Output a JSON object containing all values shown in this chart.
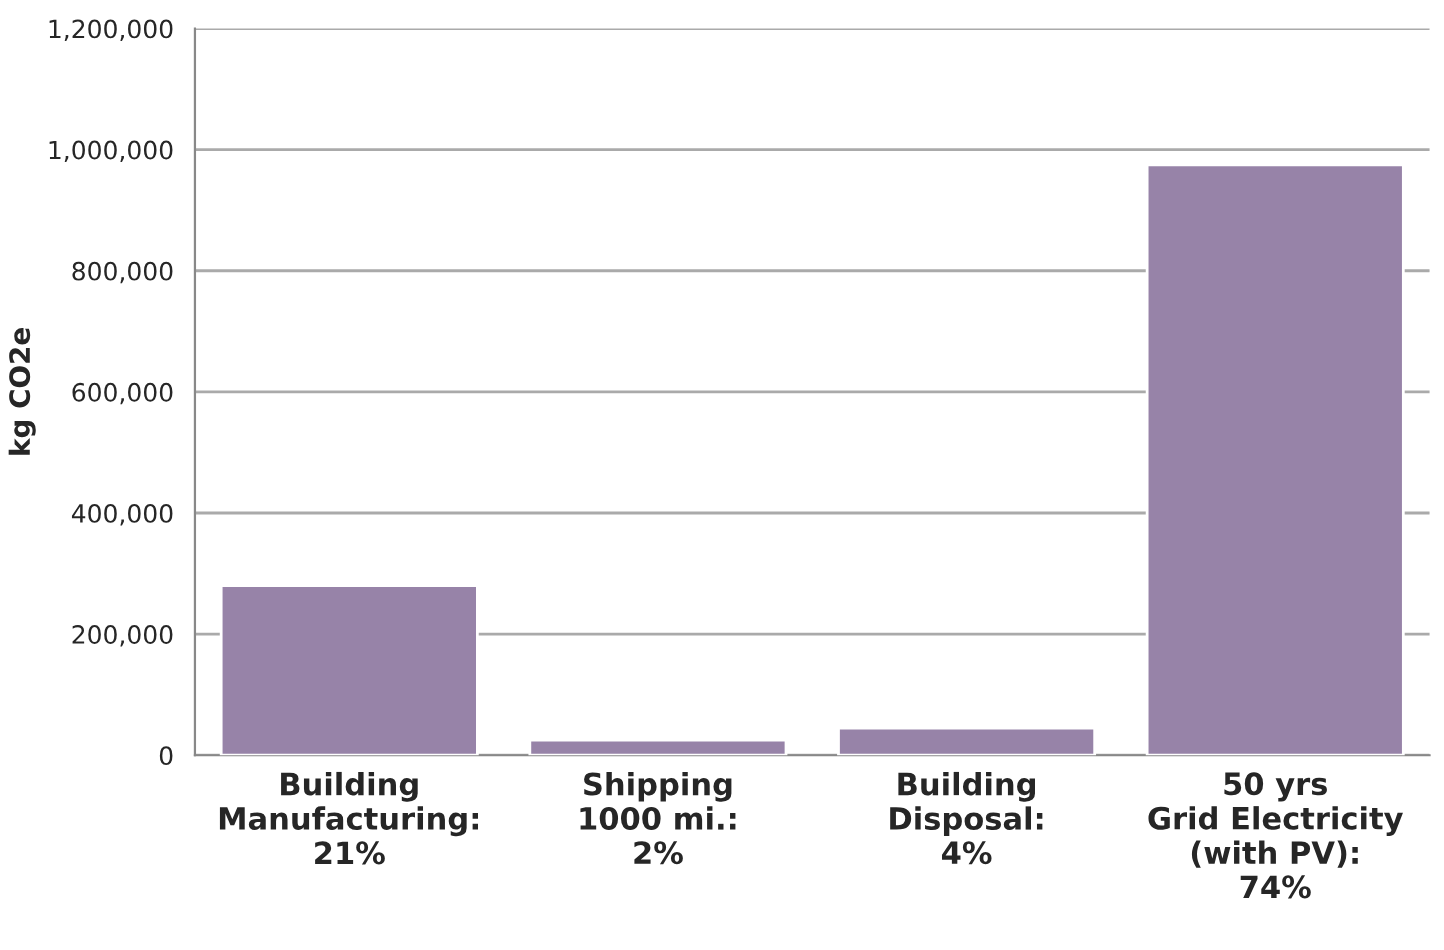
{
  "chart_data": {
    "type": "bar",
    "ylabel": "kg CO2e",
    "categories": [
      "Building\nManufacturing:\n21%",
      "Shipping\n1000 mi.:\n2%",
      "Building\nDisposal:\n4%",
      "50 yrs\nGrid Electricity\n(with PV):\n74%"
    ],
    "values": [
      280000,
      25000,
      45000,
      975000
    ],
    "color": "#9783a8",
    "ylim": [
      0,
      1200000
    ],
    "yticks": [
      {
        "value": 0,
        "label": "0"
      },
      {
        "value": 200000,
        "label": "200,000"
      },
      {
        "value": 400000,
        "label": "400,000"
      },
      {
        "value": 600000,
        "label": "600,000"
      },
      {
        "value": 800000,
        "label": "800,000"
      },
      {
        "value": 1000000,
        "label": "1,000,000"
      },
      {
        "value": 1200000,
        "label": "1,200,000"
      }
    ],
    "grid": "y",
    "legend": false
  }
}
